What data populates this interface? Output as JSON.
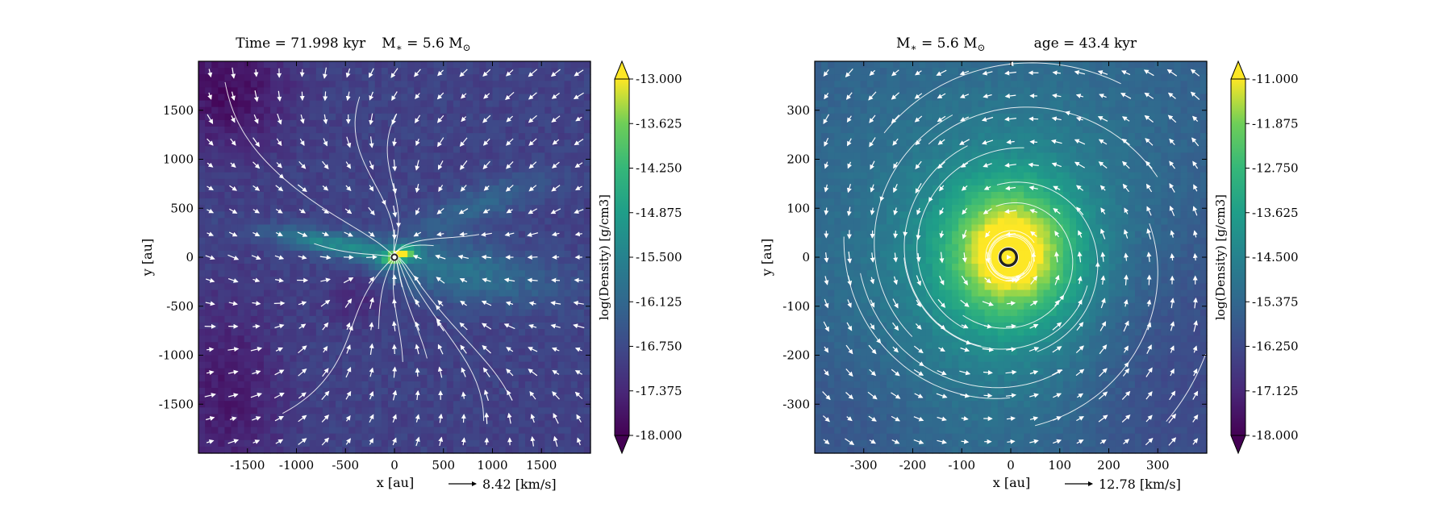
{
  "chart_data": [
    {
      "type": "heatmap",
      "title": "Time = 71.998 kyr    M$_*$ = 5.6 M$_\\odot$",
      "title_parts": [
        "Time = 71.998 kyr",
        "M",
        "∗",
        " = 5.6 M",
        "⊙"
      ],
      "xlabel": "x [au]",
      "ylabel": "y [au]",
      "xlim": [
        -2000,
        2000
      ],
      "ylim": [
        -2000,
        2000
      ],
      "xticks": [
        -1500,
        -1000,
        -500,
        0,
        500,
        1000,
        1500
      ],
      "yticks": [
        -1500,
        -1000,
        -500,
        0,
        500,
        1000,
        1500
      ],
      "velocity_scale_label": "8.42 [km/s]",
      "colorbar": {
        "label": "log(Density) [g/cm3]",
        "range": [
          -18.0,
          -13.0
        ],
        "ticks": [
          "-13.000",
          "-13.625",
          "-14.250",
          "-14.875",
          "-15.500",
          "-16.125",
          "-16.750",
          "-17.375",
          "-18.000"
        ],
        "extend": "both"
      },
      "colormap": "viridis",
      "background_density": -16.9,
      "features": [
        {
          "kind": "disk",
          "x": 50,
          "y": 20,
          "sx": 130,
          "sy": 45,
          "angle": 20,
          "amp": 3.2
        },
        {
          "kind": "filament",
          "x": -600,
          "y": 130,
          "sx": 520,
          "sy": 80,
          "angle": -10,
          "amp": 1.5
        },
        {
          "kind": "filament",
          "x": 700,
          "y": -150,
          "sx": 700,
          "sy": 220,
          "angle": -8,
          "amp": 1.0
        },
        {
          "kind": "filament",
          "x": 900,
          "y": 550,
          "sx": 500,
          "sy": 140,
          "angle": 20,
          "amp": 0.7
        },
        {
          "kind": "void",
          "x": -1700,
          "y": 1700,
          "sx": 450,
          "sy": 450,
          "angle": 0,
          "amp": -0.9
        },
        {
          "kind": "void",
          "x": -1700,
          "y": -1400,
          "sx": 400,
          "sy": 700,
          "angle": 0,
          "amp": -0.7
        },
        {
          "kind": "void",
          "x": -400,
          "y": -400,
          "sx": 220,
          "sy": 200,
          "angle": 0,
          "amp": -0.5
        }
      ],
      "sink": {
        "x": 0,
        "y": 0,
        "r": 35
      },
      "flow": {
        "type": "infall",
        "cx": 0,
        "cy": 0,
        "swirl": 0.18
      }
    },
    {
      "type": "heatmap",
      "title": "M$_*$ = 5.6 M$_\\odot$    age = 43.4 kyr",
      "title_parts": [
        "M",
        "∗",
        " = 5.6 M",
        "⊙",
        "age = 43.4 kyr"
      ],
      "xlabel": "x [au]",
      "ylabel": "y [au]",
      "xlim": [
        -400,
        400
      ],
      "ylim": [
        -400,
        400
      ],
      "xticks": [
        -300,
        -200,
        -100,
        0,
        100,
        200,
        300
      ],
      "yticks": [
        -300,
        -200,
        -100,
        0,
        100,
        200,
        300
      ],
      "velocity_scale_label": "12.78 [km/s]",
      "colorbar": {
        "label": "log(Density) [g/cm3]",
        "range": [
          -18.0,
          -11.0
        ],
        "ticks": [
          "-11.000",
          "-11.875",
          "-12.750",
          "-13.625",
          "-14.500",
          "-15.375",
          "-16.250",
          "-17.125",
          "-18.000"
        ],
        "extend": "both"
      },
      "colormap": "viridis",
      "background_density": -15.6,
      "features": [
        {
          "kind": "core",
          "x": 0,
          "y": 10,
          "sx": 90,
          "sy": 95,
          "angle": 0,
          "amp": 4.0
        },
        {
          "kind": "envelope",
          "x": 0,
          "y": 0,
          "sx": 220,
          "sy": 230,
          "angle": 0,
          "amp": 1.6
        },
        {
          "kind": "void",
          "x": 330,
          "y": -200,
          "sx": 160,
          "sy": 220,
          "angle": 0,
          "amp": -0.9
        },
        {
          "kind": "void",
          "x": -330,
          "y": -330,
          "sx": 120,
          "sy": 140,
          "angle": 0,
          "amp": -0.4
        }
      ],
      "sink": {
        "x": -5,
        "y": 0,
        "r": 20
      },
      "flow": {
        "type": "vortex",
        "cx": 0,
        "cy": 0,
        "swirl": 1.0
      }
    }
  ]
}
